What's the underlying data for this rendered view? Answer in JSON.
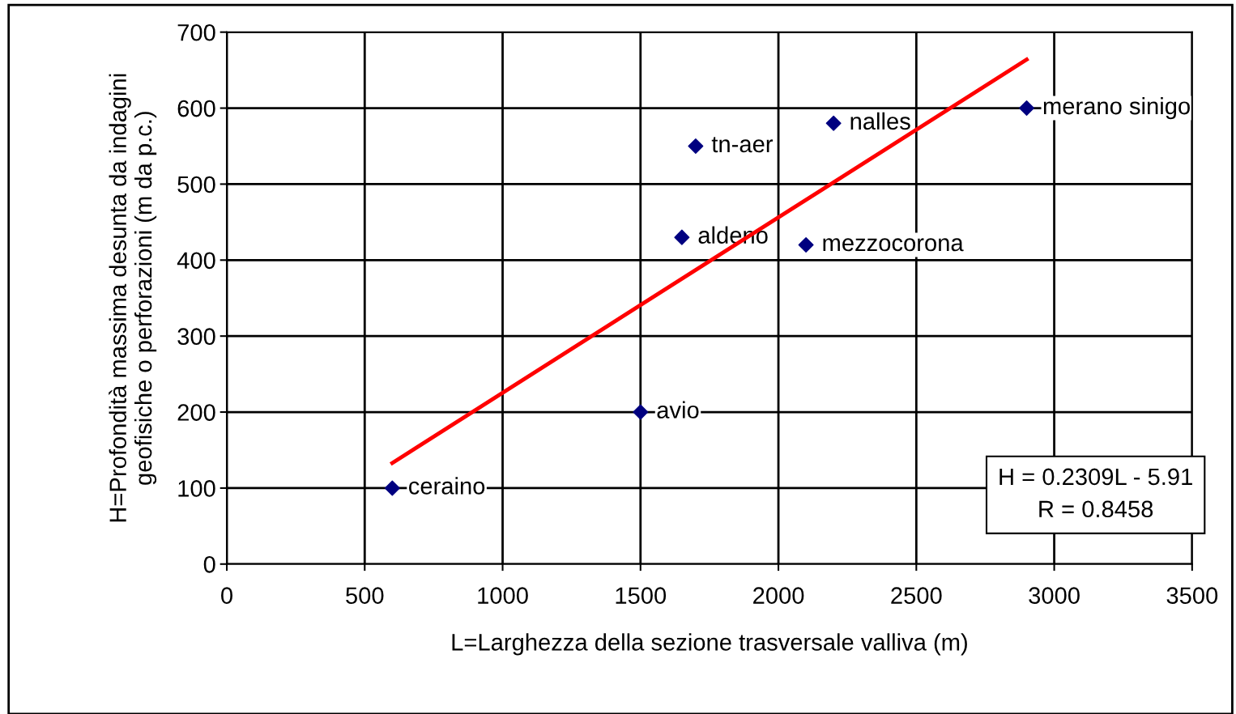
{
  "chart_data": {
    "type": "scatter",
    "xlabel": "L=Larghezza della sezione trasversale valliva (m)",
    "ylabel": "H=Profondità massima desunta da indagini\ngeofisiche o perforazioni (m da p.c.)",
    "series": [
      {
        "color": "#000080",
        "marker": "diamond",
        "x": [
          600,
          1500,
          1650,
          1700,
          2200,
          2100,
          2900
        ],
        "values": [
          100,
          200,
          430,
          550,
          580,
          420,
          600
        ]
      },
      {
        "type": "line",
        "color": "#ff0000",
        "marker": "none",
        "line_style": "solid",
        "x": [
          600,
          2900
        ],
        "values": [
          133,
          664
        ]
      }
    ],
    "annotations": [
      {
        "text": "ceraino",
        "x": 600,
        "y": 100
      },
      {
        "text": "avio",
        "x": 1500,
        "y": 200
      },
      {
        "text": "aldeno",
        "x": 1650,
        "y": 430
      },
      {
        "text": "tn-aer",
        "x": 1700,
        "y": 550
      },
      {
        "text": "nalles",
        "x": 2200,
        "y": 580
      },
      {
        "text": "mezzocorona",
        "x": 2100,
        "y": 420
      },
      {
        "text": "merano sinigo",
        "x": 2900,
        "y": 600
      },
      "H = 0.2309L - 5.91\nR = 0.8458"
    ],
    "xlim": [
      0,
      3500
    ],
    "xticks": [
      0,
      500,
      1000,
      1500,
      2000,
      2500,
      3000,
      3500
    ],
    "ylim": [
      0,
      700
    ],
    "yticks": [
      0,
      100,
      200,
      300,
      400,
      500,
      600,
      700
    ],
    "grid": true,
    "legend": false
  }
}
